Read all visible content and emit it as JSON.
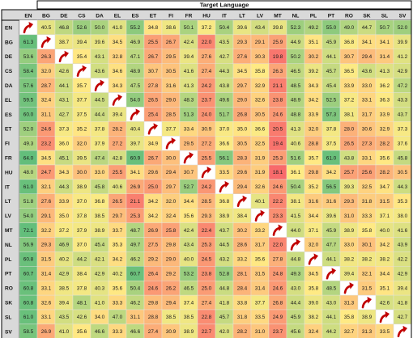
{
  "chart_data": {
    "type": "heatmap",
    "title": "Target Language",
    "languages": [
      "EN",
      "BG",
      "DE",
      "CS",
      "DA",
      "EL",
      "ES",
      "ET",
      "FI",
      "FR",
      "HU",
      "IT",
      "LT",
      "LV",
      "MT",
      "NL",
      "PL",
      "PT",
      "RO",
      "SK",
      "SL",
      "SV"
    ],
    "diagonal_marker": "red-arrow-icon",
    "color_scale": {
      "low": "#f8696b",
      "mid": "#ffeb84",
      "high": "#63be7b"
    },
    "value_range": [
      4.8,
      72.1
    ],
    "rows": [
      [
        "",
        "40.5",
        "46.8",
        "52.6",
        "50.0",
        "41.0",
        "55.2",
        "34.8",
        "38.6",
        "50.1",
        "37.2",
        "50.4",
        "39.6",
        "43.4",
        "39.8",
        "52.3",
        "49.2",
        "55.0",
        "49.0",
        "44.7",
        "50.7",
        "52.0"
      ],
      [
        "61.3",
        "",
        "38.7",
        "39.4",
        "39.6",
        "34.5",
        "46.9",
        "25.5",
        "26.7",
        "42.4",
        "22.0",
        "43.5",
        "29.3",
        "29.1",
        "25.9",
        "44.9",
        "35.1",
        "45.9",
        "36.8",
        "34.1",
        "34.1",
        "39.9"
      ],
      [
        "53.6",
        "26.3",
        "",
        "35.4",
        "43.1",
        "32.8",
        "47.1",
        "26.7",
        "29.5",
        "39.4",
        "27.6",
        "42.7",
        "27.6",
        "30.3",
        "19.8",
        "50.2",
        "30.2",
        "44.1",
        "30.7",
        "29.4",
        "31.4",
        "41.2"
      ],
      [
        "58.4",
        "32.0",
        "42.6",
        "",
        "43.6",
        "34.6",
        "48.9",
        "30.7",
        "30.5",
        "41.6",
        "27.4",
        "44.3",
        "34.5",
        "35.8",
        "26.3",
        "46.5",
        "39.2",
        "45.7",
        "36.5",
        "43.6",
        "41.3",
        "42.9"
      ],
      [
        "57.6",
        "28.7",
        "44.1",
        "35.7",
        "",
        "34.3",
        "47.5",
        "27.8",
        "31.6",
        "41.3",
        "24.2",
        "43.8",
        "29.7",
        "32.9",
        "21.1",
        "48.5",
        "34.3",
        "45.4",
        "33.9",
        "33.0",
        "36.2",
        "47.2"
      ],
      [
        "59.5",
        "32.4",
        "43.1",
        "37.7",
        "44.5",
        "",
        "54.0",
        "26.5",
        "29.0",
        "48.3",
        "23.7",
        "49.6",
        "29.0",
        "32.6",
        "23.8",
        "48.9",
        "34.2",
        "52.5",
        "37.2",
        "33.1",
        "36.3",
        "43.3"
      ],
      [
        "60.0",
        "31.1",
        "42.7",
        "37.5",
        "44.4",
        "39.4",
        "",
        "25.4",
        "28.5",
        "51.3",
        "24.0",
        "51.7",
        "26.8",
        "30.5",
        "24.6",
        "48.8",
        "33.9",
        "57.3",
        "38.1",
        "31.7",
        "33.9",
        "43.7"
      ],
      [
        "52.0",
        "24.6",
        "37.3",
        "35.2",
        "37.8",
        "28.2",
        "40.4",
        "",
        "37.7",
        "33.4",
        "30.9",
        "37.0",
        "35.0",
        "36.6",
        "20.5",
        "41.3",
        "32.0",
        "37.8",
        "28.0",
        "30.6",
        "32.9",
        "37.3"
      ],
      [
        "49.3",
        "23.2",
        "36.0",
        "32.0",
        "37.9",
        "27.2",
        "39.7",
        "34.9",
        "",
        "29.5",
        "27.2",
        "36.6",
        "30.5",
        "32.5",
        "19.4",
        "40.6",
        "28.8",
        "37.5",
        "26.5",
        "27.3",
        "28.2",
        "37.6"
      ],
      [
        "64.0",
        "34.5",
        "45.1",
        "39.5",
        "47.4",
        "42.8",
        "60.9",
        "26.7",
        "30.0",
        "",
        "25.5",
        "56.1",
        "28.3",
        "31.9",
        "25.3",
        "51.6",
        "35.7",
        "61.0",
        "43.8",
        "33.1",
        "35.6",
        "45.8"
      ],
      [
        "48.0",
        "24.7",
        "34.3",
        "30.0",
        "33.0",
        "25.5",
        "34.1",
        "29.6",
        "29.4",
        "30.7",
        "",
        "33.5",
        "29.6",
        "31.9",
        "18.1",
        "36.1",
        "29.8",
        "34.2",
        "25.7",
        "25.6",
        "28.2",
        "30.5"
      ],
      [
        "61.0",
        "32.1",
        "44.3",
        "38.9",
        "45.8",
        "40.6",
        "26.9",
        "25.0",
        "29.7",
        "52.7",
        "24.2",
        "",
        "29.4",
        "32.6",
        "24.6",
        "50.4",
        "35.2",
        "56.5",
        "39.3",
        "32.5",
        "34.7",
        "44.3"
      ],
      [
        "51.8",
        "27.6",
        "33.9",
        "37.0",
        "36.8",
        "26.5",
        "21.1",
        "34.2",
        "32.0",
        "34.4",
        "28.5",
        "36.8",
        "",
        "40.1",
        "22.2",
        "38.1",
        "31.6",
        "31.6",
        "29.3",
        "31.8",
        "31.5",
        "35.3"
      ],
      [
        "54.0",
        "29.1",
        "35.0",
        "37.8",
        "38.5",
        "29.7",
        "25.3",
        "34.2",
        "32.4",
        "35.6",
        "29.3",
        "38.9",
        "38.4",
        "",
        "23.3",
        "41.5",
        "34.4",
        "39.6",
        "31.0",
        "33.3",
        "37.1",
        "38.0"
      ],
      [
        "72.1",
        "32.2",
        "37.2",
        "37.9",
        "38.9",
        "33.7",
        "48.7",
        "26.9",
        "25.8",
        "42.4",
        "22.4",
        "43.7",
        "30.2",
        "33.2",
        "",
        "44.0",
        "37.1",
        "45.9",
        "38.9",
        "35.8",
        "40.0",
        "41.6"
      ],
      [
        "56.9",
        "29.3",
        "46.9",
        "37.0",
        "45.4",
        "35.3",
        "49.7",
        "27.5",
        "29.8",
        "43.4",
        "25.3",
        "44.5",
        "28.6",
        "31.7",
        "22.0",
        "",
        "32.0",
        "47.7",
        "33.0",
        "30.1",
        "34.2",
        "43.9"
      ],
      [
        "60.8",
        "31.5",
        "40.2",
        "44.2",
        "42.1",
        "34.2",
        "46.2",
        "29.2",
        "29.0",
        "40.0",
        "24.5",
        "43.2",
        "33.2",
        "35.6",
        "27.8",
        "44.8",
        "",
        "44.1",
        "38.2",
        "38.2",
        "38.2",
        "42.2"
      ],
      [
        "60.7",
        "31.4",
        "42.9",
        "38.4",
        "42.9",
        "40.2",
        "60.7",
        "26.4",
        "29.2",
        "53.2",
        "23.8",
        "52.8",
        "28.1",
        "31.5",
        "24.8",
        "49.3",
        "34.5",
        "",
        "39.4",
        "32.1",
        "34.4",
        "42.9"
      ],
      [
        "60.8",
        "33.1",
        "38.5",
        "37.8",
        "40.3",
        "35.6",
        "50.4",
        "24.6",
        "26.2",
        "46.5",
        "25.0",
        "44.8",
        "28.4",
        "31.4",
        "24.6",
        "43.0",
        "35.8",
        "48.5",
        "",
        "31.5",
        "35.1",
        "39.4"
      ],
      [
        "60.8",
        "32.6",
        "39.4",
        "48.1",
        "41.0",
        "33.3",
        "46.2",
        "29.8",
        "29.4",
        "37.4",
        "27.4",
        "41.8",
        "33.8",
        "37.7",
        "26.8",
        "44.4",
        "39.0",
        "43.0",
        "31.3",
        "",
        "42.6",
        "41.8"
      ],
      [
        "61.0",
        "33.1",
        "43.5",
        "42.6",
        "34.0",
        "47.0",
        "31.1",
        "28.8",
        "38.5",
        "38.5",
        "22.8",
        "45.7",
        "31.8",
        "33.5",
        "24.9",
        "45.9",
        "38.2",
        "44.1",
        "35.8",
        "38.9",
        "",
        "42.7"
      ],
      [
        "58.5",
        "26.9",
        "41.0",
        "35.6",
        "46.6",
        "33.3",
        "46.6",
        "27.4",
        "30.9",
        "38.9",
        "22.7",
        "42.0",
        "28.2",
        "31.0",
        "23.7",
        "45.6",
        "32.4",
        "44.2",
        "32.7",
        "31.3",
        "33.5",
        ""
      ]
    ]
  }
}
